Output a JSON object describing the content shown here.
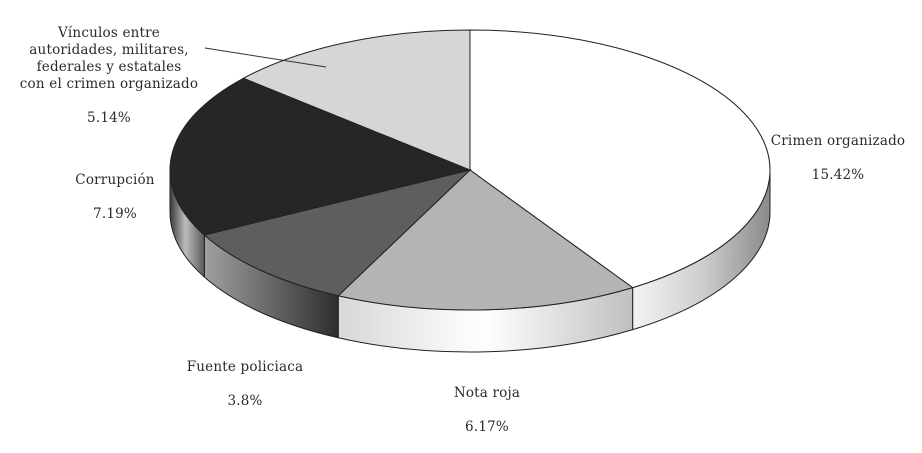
{
  "chart_data": {
    "type": "pie",
    "title": "",
    "slices": [
      {
        "label": "Crimen organizado",
        "value_text": "15.42%",
        "value": 15.42,
        "color": "#ffffff"
      },
      {
        "label": "Nota roja",
        "value_text": "6.17%",
        "value": 6.17,
        "color": "#b4b4b4"
      },
      {
        "label": "Fuente policiaca",
        "value_text": "3.8%",
        "value": 3.8,
        "color": "#5e5e5e"
      },
      {
        "label": "Corrupción",
        "value_text": "7.19%",
        "value": 7.19,
        "color": "#262626"
      },
      {
        "label": "Vínculos entre\nautoridades, militares,\nfederales y estatales\ncon el crimen organizado",
        "value_text": "5.14%",
        "value": 5.14,
        "color": "#d6d6d6"
      }
    ]
  }
}
